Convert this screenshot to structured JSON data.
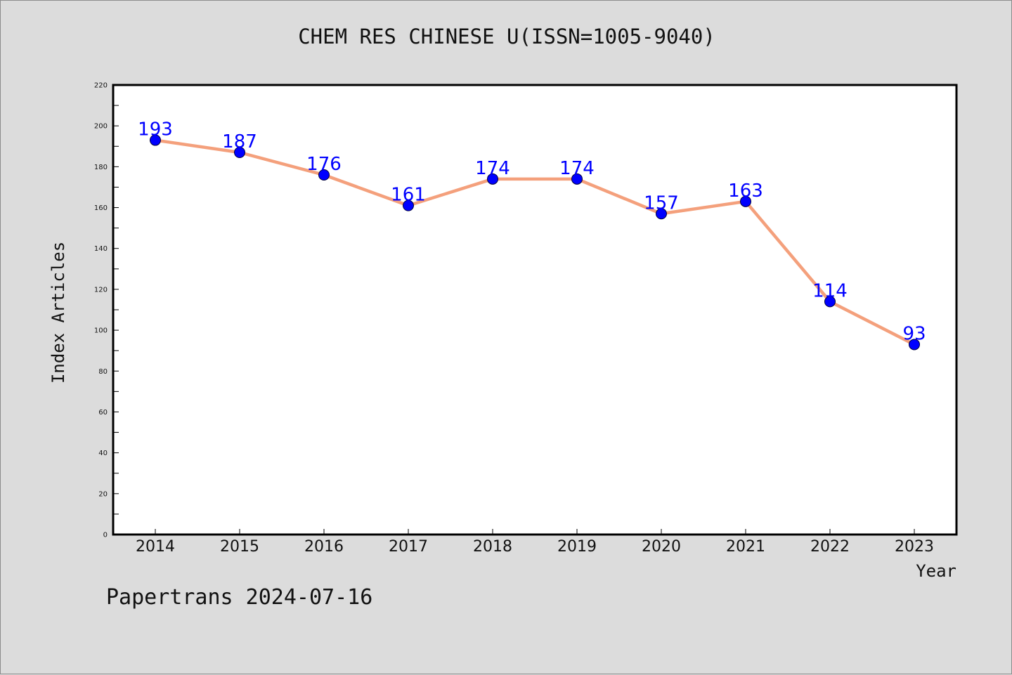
{
  "colors": {
    "background": "#dcdcdc",
    "plot_background": "#ffffff",
    "line": "#f4a07c",
    "marker": "#0000ff",
    "data_label": "#0000ff",
    "axis": "#000000"
  },
  "footer": {
    "text": "Papertrans 2024-07-16"
  },
  "chart_data": {
    "type": "line",
    "title": "CHEM RES CHINESE U(ISSN=1005-9040)",
    "xlabel": "Year",
    "ylabel": "Index Articles",
    "categories": [
      "2014",
      "2015",
      "2016",
      "2017",
      "2018",
      "2019",
      "2020",
      "2021",
      "2022",
      "2023"
    ],
    "series": [
      {
        "values": [
          193,
          187,
          176,
          161,
          174,
          174,
          157,
          163,
          114,
          93
        ]
      }
    ],
    "ylim": [
      0,
      220
    ],
    "yticks": [
      0,
      20,
      40,
      60,
      80,
      100,
      120,
      140,
      160,
      180,
      200,
      220
    ],
    "grid": false,
    "data_labels": true
  }
}
